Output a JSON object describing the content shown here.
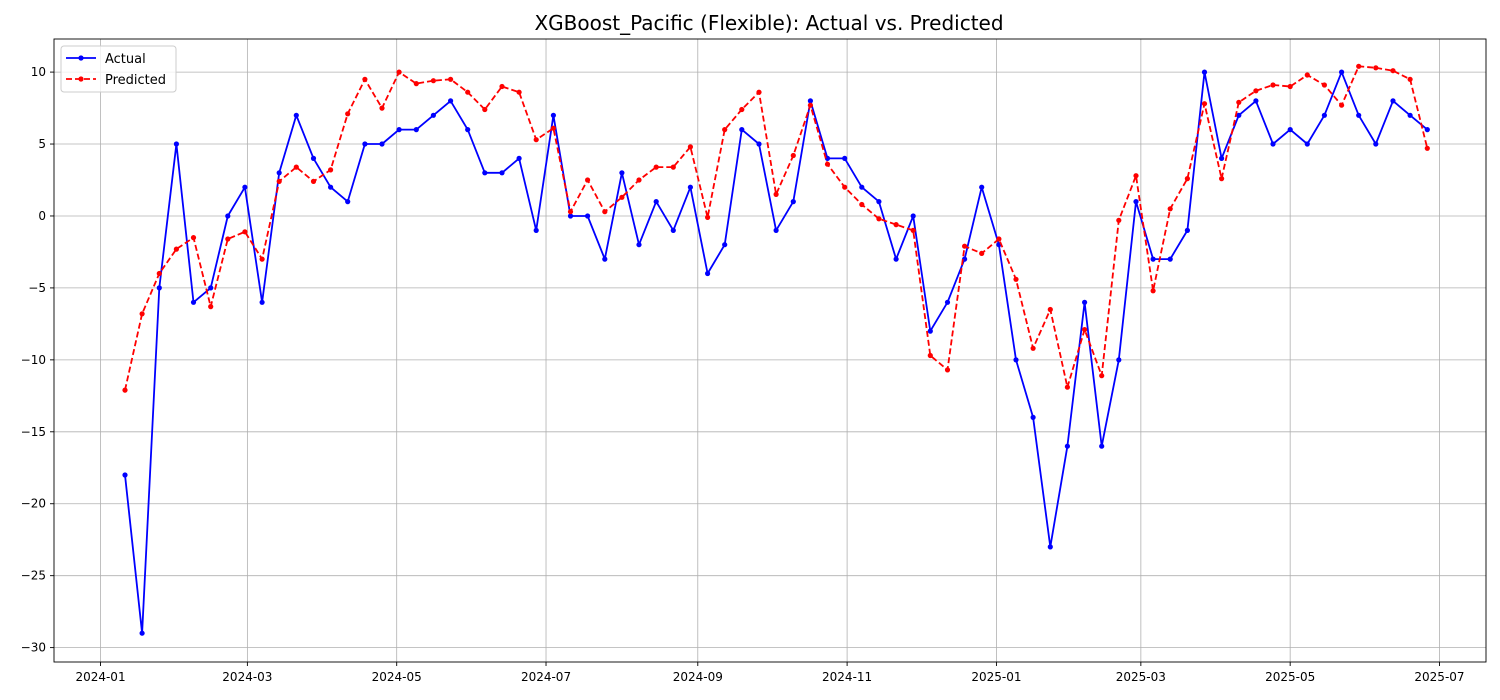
{
  "chart_data": {
    "type": "line",
    "title": "XGBoost_Pacific (Flexible): Actual vs. Predicted",
    "xlabel": "",
    "ylabel": "",
    "xlim": [
      "2023-12-13",
      "2025-07-20"
    ],
    "ylim": [
      -31,
      12.3
    ],
    "grid": true,
    "legend_position": "top-left",
    "x_ticks": [
      "2024-01-01",
      "2024-03-01",
      "2024-05-01",
      "2024-07-01",
      "2024-09-01",
      "2024-11-01",
      "2025-01-01",
      "2025-03-01",
      "2025-05-01",
      "2025-07-01"
    ],
    "x_tick_labels": [
      "2024-01",
      "2024-03",
      "2024-05",
      "2024-07",
      "2024-09",
      "2024-11",
      "2025-01",
      "2025-03",
      "2025-05",
      "2025-07"
    ],
    "y_ticks": [
      -30,
      -25,
      -20,
      -15,
      -10,
      -5,
      0,
      5,
      10
    ],
    "y_tick_labels": [
      "−30",
      "−25",
      "−20",
      "−15",
      "−10",
      "−5",
      "0",
      "5",
      "10"
    ],
    "x": [
      "2024-01-11",
      "2024-01-18",
      "2024-01-25",
      "2024-02-01",
      "2024-02-08",
      "2024-02-15",
      "2024-02-22",
      "2024-02-29",
      "2024-03-07",
      "2024-03-14",
      "2024-03-21",
      "2024-03-28",
      "2024-04-04",
      "2024-04-11",
      "2024-04-18",
      "2024-04-25",
      "2024-05-02",
      "2024-05-09",
      "2024-05-16",
      "2024-05-23",
      "2024-05-30",
      "2024-06-06",
      "2024-06-13",
      "2024-06-20",
      "2024-06-27",
      "2024-07-04",
      "2024-07-11",
      "2024-07-18",
      "2024-07-25",
      "2024-08-01",
      "2024-08-08",
      "2024-08-15",
      "2024-08-22",
      "2024-08-29",
      "2024-09-05",
      "2024-09-12",
      "2024-09-19",
      "2024-09-26",
      "2024-10-03",
      "2024-10-10",
      "2024-10-17",
      "2024-10-24",
      "2024-10-31",
      "2024-11-07",
      "2024-11-14",
      "2024-11-21",
      "2024-11-28",
      "2024-12-05",
      "2024-12-12",
      "2024-12-19",
      "2024-12-26",
      "2025-01-02",
      "2025-01-09",
      "2025-01-16",
      "2025-01-23",
      "2025-01-30",
      "2025-02-06",
      "2025-02-13",
      "2025-02-20",
      "2025-02-27",
      "2025-03-06",
      "2025-03-13",
      "2025-03-20",
      "2025-03-27",
      "2025-04-03",
      "2025-04-10",
      "2025-04-17",
      "2025-04-24",
      "2025-05-01",
      "2025-05-08",
      "2025-05-15",
      "2025-05-22",
      "2025-05-29",
      "2025-06-05",
      "2025-06-12",
      "2025-06-19",
      "2025-06-26"
    ],
    "series": [
      {
        "name": "Actual",
        "color": "#0000ff",
        "style": "solid",
        "marker": "circle",
        "values": [
          -18,
          -29,
          -5,
          5,
          -6,
          -5,
          0,
          2,
          -6,
          3,
          7,
          4,
          2,
          1,
          5,
          5,
          6,
          6,
          7,
          8,
          6,
          3,
          3,
          4,
          -1,
          7,
          0,
          0,
          -3,
          3,
          -2,
          1,
          -1,
          2,
          -4,
          -2,
          6,
          5,
          -1,
          1,
          8,
          4,
          4,
          2,
          1,
          -3,
          0,
          -8,
          -6,
          -3,
          2,
          -2,
          -10,
          -14,
          -23,
          -16,
          -6,
          -16,
          -10,
          1,
          -3,
          -3,
          -1,
          10,
          4,
          7,
          8,
          5,
          6,
          5,
          7,
          10,
          7,
          5,
          8,
          7,
          6
        ]
      },
      {
        "name": "Predicted",
        "color": "#ff0000",
        "style": "dashed",
        "marker": "circle",
        "values": [
          -12.1,
          -6.8,
          -4.0,
          -2.3,
          -1.5,
          -6.3,
          -1.6,
          -1.1,
          -3.0,
          2.4,
          3.4,
          2.4,
          3.2,
          7.1,
          9.5,
          7.5,
          10.0,
          9.2,
          9.4,
          9.5,
          8.6,
          7.4,
          9.0,
          8.6,
          5.3,
          6.1,
          0.3,
          2.5,
          0.3,
          1.3,
          2.5,
          3.4,
          3.4,
          4.8,
          -0.1,
          6.0,
          7.4,
          8.6,
          1.5,
          4.2,
          7.7,
          3.6,
          2.0,
          0.8,
          -0.2,
          -0.6,
          -1.0,
          -9.7,
          -10.7,
          -2.1,
          -2.6,
          -1.6,
          -4.4,
          -9.2,
          -6.5,
          -11.9,
          -7.9,
          -11.1,
          -0.3,
          2.8,
          -5.2,
          0.5,
          2.6,
          7.8,
          2.6,
          7.9,
          8.7,
          9.1,
          9.0,
          9.8,
          9.1,
          7.7,
          10.4,
          10.3,
          10.1,
          9.5,
          4.7
        ]
      }
    ]
  }
}
